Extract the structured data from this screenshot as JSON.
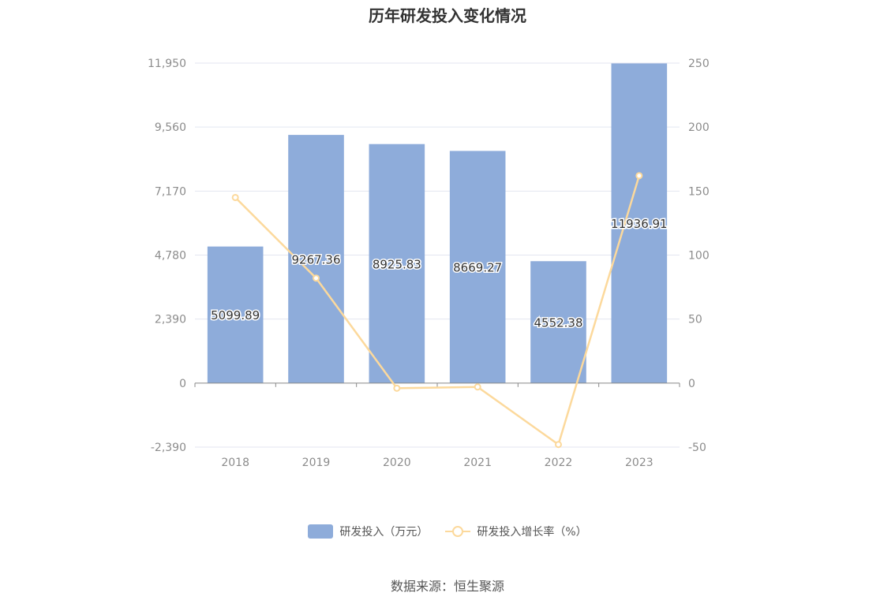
{
  "chart_data": {
    "type": "bar",
    "title": "历年研发投入变化情况",
    "categories": [
      "2018",
      "2019",
      "2020",
      "2021",
      "2022",
      "2023"
    ],
    "series": [
      {
        "name": "研发投入（万元）",
        "type": "bar",
        "axis": "left",
        "values": [
          5099.89,
          9267.36,
          8925.83,
          8669.27,
          4552.38,
          11936.91
        ],
        "labels": [
          "5099.89",
          "9267.36",
          "8925.83",
          "8669.27",
          "4552.38",
          "11936.91"
        ],
        "color": "#8eacda"
      },
      {
        "name": "研发投入增长率（%）",
        "type": "line",
        "axis": "right",
        "values": [
          145,
          82,
          -4,
          -3,
          -48,
          162
        ],
        "color": "#fcd99c"
      }
    ],
    "y_left": {
      "ylim": [
        -2390,
        11950
      ],
      "ticks": [
        -2390,
        0,
        2390,
        4780,
        7170,
        9560,
        11950
      ],
      "tick_labels": [
        "-2,390",
        "0",
        "2,390",
        "4,780",
        "7,170",
        "9,560",
        "11,950"
      ]
    },
    "y_right": {
      "ylim": [
        -50,
        250
      ],
      "ticks": [
        -50,
        0,
        50,
        100,
        150,
        200,
        250
      ],
      "tick_labels": [
        "-50",
        "0",
        "50",
        "100",
        "150",
        "200",
        "250"
      ]
    },
    "grid": true,
    "legend_position": "bottom",
    "source": "数据来源：恒生聚源"
  }
}
